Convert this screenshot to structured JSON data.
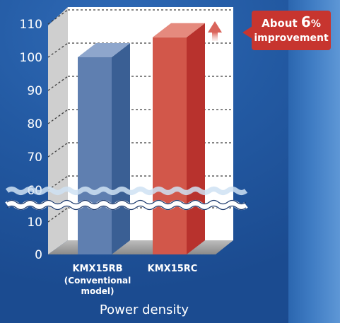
{
  "chart_data": {
    "type": "bar",
    "categories": [
      "KMX15RB",
      "KMX15RC"
    ],
    "category_notes": [
      "(Conventional model)",
      ""
    ],
    "values": [
      100,
      106
    ],
    "xlabel": "Power density",
    "ylabel": "",
    "y_ticks": [
      0,
      10,
      60,
      70,
      80,
      90,
      100,
      110
    ],
    "axis_break": [
      10,
      60
    ],
    "ylim": [
      0,
      110
    ],
    "grid": true,
    "bar_colors": [
      "#5f7fb0",
      "#d2574a"
    ],
    "annotation": {
      "prefix": "About ",
      "number": "6",
      "unit": "%",
      "line2": "improvement"
    }
  }
}
